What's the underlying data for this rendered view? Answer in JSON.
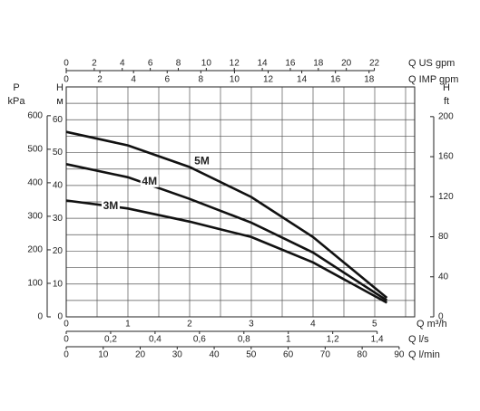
{
  "chart_data": {
    "type": "line",
    "x": [
      0,
      1,
      2,
      3,
      4,
      5.2
    ],
    "xlim": [
      0,
      5.65
    ],
    "xticks": [
      0,
      1,
      2,
      3,
      4,
      5
    ],
    "xlabel": "Q m³/h",
    "ylim": [
      0,
      70
    ],
    "yticks": [
      0,
      10,
      20,
      30,
      40,
      50,
      60
    ],
    "ylabel": [
      "H",
      "м"
    ],
    "grid": true,
    "series": [
      {
        "name": "3M",
        "color": "#111111",
        "values": [
          35.4,
          33,
          29,
          24.3,
          16.6,
          4.3
        ]
      },
      {
        "name": "4M",
        "color": "#111111",
        "values": [
          46.5,
          42.5,
          35.9,
          28.7,
          19.6,
          5
        ]
      },
      {
        "name": "5M",
        "color": "#111111",
        "values": [
          56.3,
          52.2,
          45.6,
          36.5,
          24.3,
          5.8
        ]
      }
    ],
    "secondary_x_axes": [
      {
        "label": "Q US gpm",
        "lim": [
          0,
          24.88
        ],
        "ticks": [
          0,
          2,
          4,
          6,
          8,
          10,
          12,
          14,
          16,
          18,
          20,
          22
        ]
      },
      {
        "label": "Q IMP gpm",
        "lim": [
          0,
          20.71
        ],
        "ticks": [
          0,
          2,
          4,
          6,
          8,
          10,
          12,
          14,
          16,
          18
        ]
      },
      {
        "label": "Q l/s",
        "lim": [
          0,
          1.569
        ],
        "ticks": [
          0,
          {
            "value": 0.2,
            "label": "0,2"
          },
          {
            "value": 0.4,
            "label": "0,4"
          },
          {
            "value": 0.6,
            "label": "0,6"
          },
          {
            "value": 0.8,
            "label": "0,8"
          },
          1,
          {
            "value": 1.2,
            "label": "1,2"
          },
          {
            "value": 1.4,
            "label": "1,4"
          }
        ]
      },
      {
        "label": "Q l/min",
        "lim": [
          0,
          94.2
        ],
        "ticks": [
          0,
          10,
          20,
          30,
          40,
          50,
          60,
          70,
          80,
          90
        ]
      }
    ],
    "secondary_y_axes": [
      {
        "label": [
          "P",
          "kPa"
        ],
        "lim": [
          0,
          686
        ],
        "ticks": [
          0,
          100,
          200,
          300,
          400,
          500,
          600
        ]
      },
      {
        "label": [
          "H",
          "ft"
        ],
        "lim": [
          0,
          229.7
        ],
        "ticks": [
          0,
          40,
          80,
          120,
          160,
          200
        ]
      }
    ]
  }
}
